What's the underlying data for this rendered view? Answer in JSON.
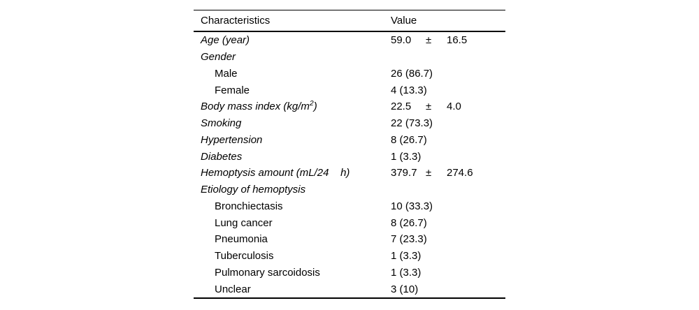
{
  "page": {
    "background": "#ffffff",
    "text_color": "#000000",
    "rule_color": "#000000"
  },
  "table": {
    "header": {
      "characteristics": "Characteristics",
      "value": "Value"
    },
    "rows": [
      {
        "label": "Age (year)",
        "italic": true,
        "indent": 0,
        "mean": "59.0",
        "pm": "±",
        "sd": "16.5"
      },
      {
        "label": "Gender",
        "italic": true,
        "indent": 0
      },
      {
        "label": "Male",
        "italic": false,
        "indent": 1,
        "value": "26 (86.7)"
      },
      {
        "label": "Female",
        "italic": false,
        "indent": 1,
        "value": "4 (13.3)"
      },
      {
        "label": "Body mass index (kg/m",
        "label_sup": "2",
        "label_tail": ")",
        "italic": true,
        "indent": 0,
        "mean": "22.5",
        "pm": "±",
        "sd": "4.0"
      },
      {
        "label": "Smoking",
        "italic": true,
        "indent": 0,
        "value": "22 (73.3)"
      },
      {
        "label": "Hypertension",
        "italic": true,
        "indent": 0,
        "value": "8 (26.7)"
      },
      {
        "label": "Diabetes",
        "italic": true,
        "indent": 0,
        "value": "1 (3.3)"
      },
      {
        "label": "Hemoptysis amount (mL/24    h)",
        "italic": true,
        "indent": 0,
        "mean": "379.7",
        "pm": "±",
        "sd": "274.6"
      },
      {
        "label": "Etiology of hemoptysis",
        "italic": true,
        "indent": 0
      },
      {
        "label": "Bronchiectasis",
        "italic": false,
        "indent": 1,
        "value": "10 (33.3)"
      },
      {
        "label": "Lung cancer",
        "italic": false,
        "indent": 1,
        "value": "8 (26.7)"
      },
      {
        "label": "Pneumonia",
        "italic": false,
        "indent": 1,
        "value": "7 (23.3)"
      },
      {
        "label": "Tuberculosis",
        "italic": false,
        "indent": 1,
        "value": "1 (3.3)"
      },
      {
        "label": "Pulmonary sarcoidosis",
        "italic": false,
        "indent": 1,
        "value": "1 (3.3)"
      },
      {
        "label": "Unclear",
        "italic": false,
        "indent": 1,
        "value": "3 (10)"
      }
    ]
  }
}
